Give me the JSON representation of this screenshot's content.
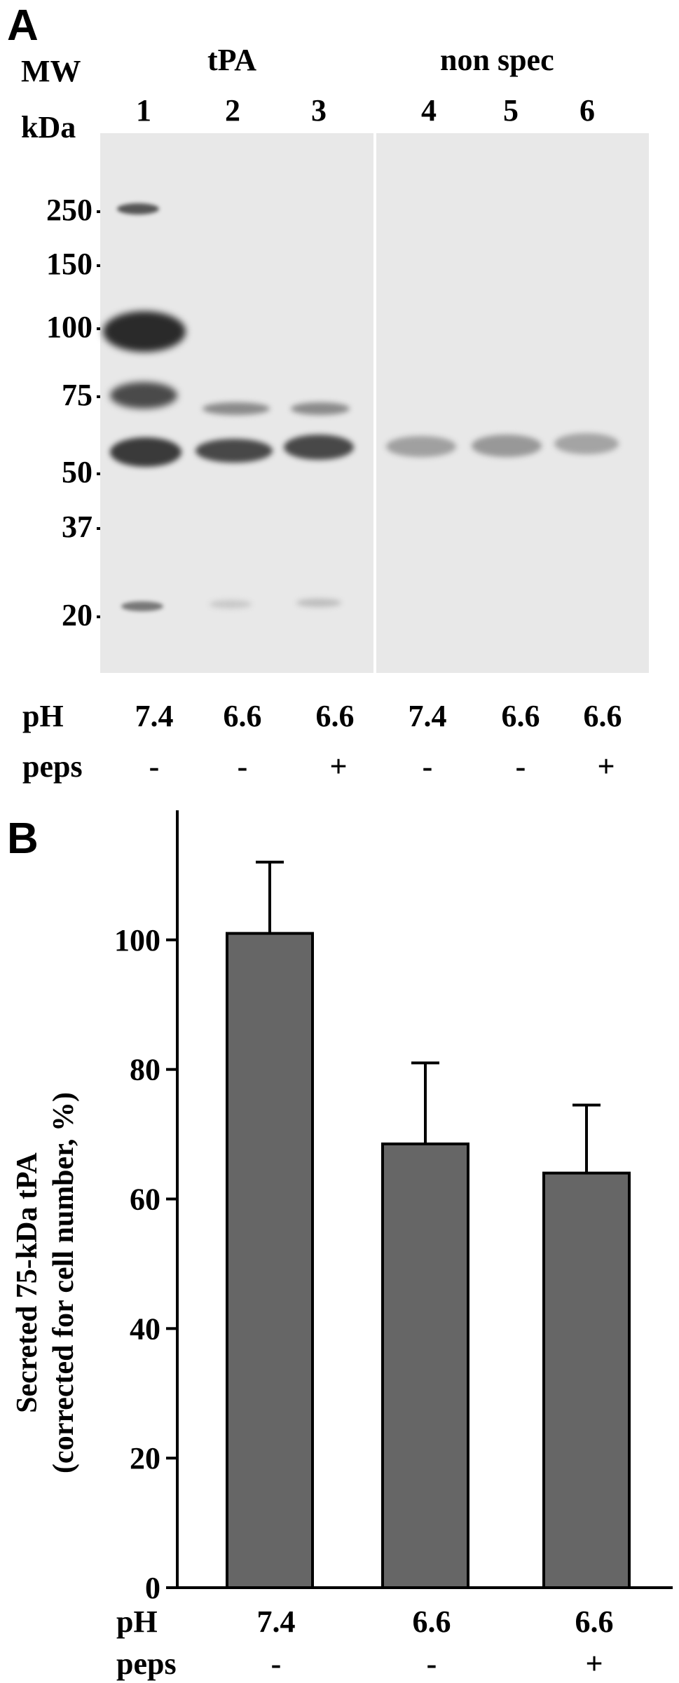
{
  "panel_a": {
    "letter": "A",
    "mw_header": [
      "MW",
      "kDa"
    ],
    "group_labels": {
      "tpa": "tPA",
      "nonspec": "non spec"
    },
    "lanes": [
      "1",
      "2",
      "3",
      "4",
      "5",
      "6"
    ],
    "mw_markers": [
      "250",
      "150",
      "100",
      "75",
      "50",
      "37",
      "20"
    ],
    "ph_label": "pH",
    "peps_label": "peps",
    "ph_values": [
      "7.4",
      "6.6",
      "6.6",
      "7.4",
      "6.6",
      "6.6"
    ],
    "peps_values": [
      "-",
      "-",
      "+",
      "-",
      "-",
      "+"
    ]
  },
  "panel_b": {
    "letter": "B",
    "ph_label": "pH",
    "peps_label": "peps",
    "ph_values": [
      "7.4",
      "6.6",
      "6.6"
    ],
    "peps_values": [
      "-",
      "-",
      "+"
    ]
  },
  "chart_data": {
    "type": "bar",
    "categories": [
      "7.4",
      "6.6",
      "6.6"
    ],
    "values": [
      101,
      68.5,
      64
    ],
    "errors": [
      11,
      12.5,
      10.5
    ],
    "ylabel_line1": "Secreted 75-kDa tPA",
    "ylabel_line2": "(corrected for cell number, %)",
    "ylim": [
      0,
      120
    ],
    "yticks": [
      0,
      20,
      40,
      60,
      80,
      100
    ],
    "bar_color": "#666666",
    "grid": false
  }
}
